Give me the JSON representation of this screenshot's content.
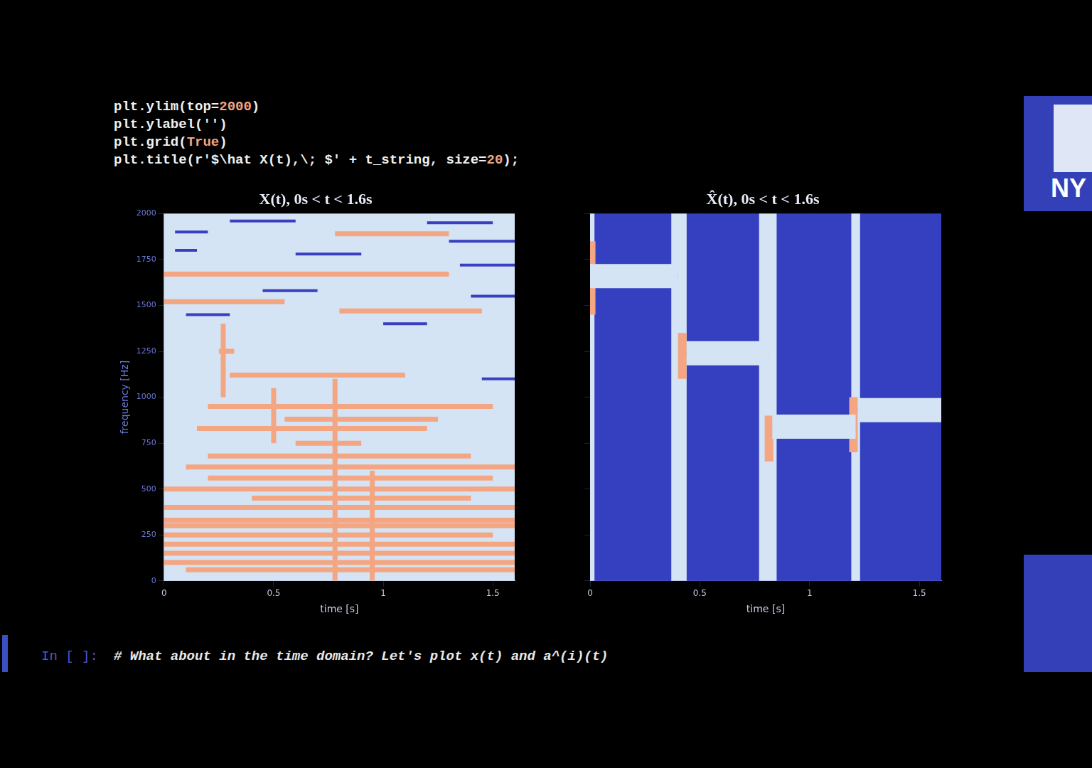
{
  "code": {
    "lines": [
      "plt.ylim(top=2000)",
      "plt.ylabel('')",
      "plt.grid(True)",
      "plt.title(r'$\\hat X(t),\\; $' + t_string, size=20);"
    ]
  },
  "chart_data": [
    {
      "type": "spectrogram",
      "title": "X(t), 0s < t < 1.6s",
      "x_label": "time [s]",
      "y_label": "frequency [Hz]",
      "xlim": [
        0,
        1.6
      ],
      "xticks": [
        0,
        0.5,
        1,
        1.5
      ],
      "ylim": [
        0,
        2000
      ],
      "yticks": [
        0,
        250,
        500,
        750,
        1000,
        1250,
        1500,
        1750,
        2000
      ],
      "grid": true,
      "color": "#d4e4f4",
      "series": [
        {
          "color": "#f4a582",
          "line_style": "thick",
          "segments": [
            [
              0,
              1.3,
              1670,
              1670
            ],
            [
              0.78,
              1.3,
              1890,
              1890
            ],
            [
              0.25,
              0.32,
              1250,
              1250
            ],
            [
              0,
              0.55,
              1520,
              1520
            ],
            [
              0.8,
              1.45,
              1470,
              1470
            ],
            [
              0.3,
              1.1,
              1120,
              1120
            ],
            [
              0.2,
              1.5,
              950,
              950
            ],
            [
              0.55,
              1.25,
              880,
              880
            ],
            [
              0.15,
              1.2,
              830,
              830
            ],
            [
              0.6,
              0.9,
              750,
              750
            ],
            [
              0.2,
              1.4,
              680,
              680
            ],
            [
              0.1,
              1.6,
              620,
              620
            ],
            [
              0.2,
              1.5,
              560,
              560
            ],
            [
              0,
              1.6,
              500,
              500
            ],
            [
              0.4,
              1.4,
              450,
              450
            ],
            [
              0,
              1.6,
              400,
              400
            ],
            [
              0,
              1.6,
              330,
              330
            ],
            [
              0,
              1.6,
              300,
              300
            ],
            [
              0,
              1.5,
              250,
              250
            ],
            [
              0,
              1.6,
              200,
              200
            ],
            [
              0,
              1.6,
              150,
              150
            ],
            [
              0,
              1.6,
              100,
              100
            ],
            [
              0.1,
              1.6,
              60,
              60
            ],
            [
              0.27,
              0.27,
              1000,
              1400
            ],
            [
              0.5,
              0.5,
              750,
              1050
            ],
            [
              0.78,
              0.78,
              0,
              1100
            ],
            [
              0.95,
              0.95,
              0,
              600
            ]
          ]
        },
        {
          "color": "#3a3fc0",
          "line_style": "thin",
          "segments": [
            [
              0.05,
              0.2,
              1900,
              1900
            ],
            [
              0.3,
              0.6,
              1960,
              1960
            ],
            [
              1.3,
              1.6,
              1850,
              1850
            ],
            [
              1.35,
              1.6,
              1720,
              1720
            ],
            [
              0.45,
              0.7,
              1580,
              1580
            ],
            [
              1.4,
              1.6,
              1550,
              1550
            ],
            [
              0.6,
              0.9,
              1780,
              1780
            ],
            [
              1.2,
              1.5,
              1950,
              1950
            ],
            [
              0.1,
              0.3,
              1450,
              1450
            ],
            [
              1.45,
              1.6,
              1100,
              1100
            ],
            [
              0.05,
              0.15,
              1800,
              1800
            ],
            [
              1,
              1.2,
              1400,
              1400
            ]
          ]
        }
      ]
    },
    {
      "type": "spectrogram",
      "title": "X̂(t), 0s < t < 1.6s",
      "x_label": "time [s]",
      "xlim": [
        0,
        1.6
      ],
      "xticks": [
        0,
        0.5,
        1,
        1.5
      ],
      "ylim": [
        0,
        2000
      ],
      "yticks": [
        0,
        250,
        500,
        750,
        1000,
        1250,
        1500,
        1750,
        2000
      ],
      "grid": true,
      "tick_labels": "x",
      "color": "#3440c0",
      "bands": [
        [
          0,
          0.02
        ],
        [
          0.37,
          0.44
        ],
        [
          0.77,
          0.85
        ],
        [
          1.19,
          1.23
        ]
      ],
      "series": [
        {
          "color": "#f4a582",
          "line_style": "glow",
          "segments": [
            [
              0,
              0.4,
              1660,
              1660
            ],
            [
              0.44,
              0.81,
              1240,
              1240
            ],
            [
              0.83,
              1.21,
              840,
              840
            ],
            [
              1.22,
              1.6,
              930,
              930
            ]
          ]
        },
        {
          "color": "#f4a582",
          "line_style": "smear",
          "segments": [
            [
              0.005,
              0.005,
              1450,
              1850
            ],
            [
              0.42,
              0.42,
              1100,
              1350
            ],
            [
              0.815,
              0.815,
              650,
              900
            ],
            [
              1.2,
              1.2,
              700,
              1000
            ]
          ]
        }
      ]
    }
  ],
  "cell": {
    "prompt": "In [ ]:",
    "comment": "# What about in the time domain? Let's plot x(t) and a^(i)(t)"
  },
  "logo": "NY"
}
